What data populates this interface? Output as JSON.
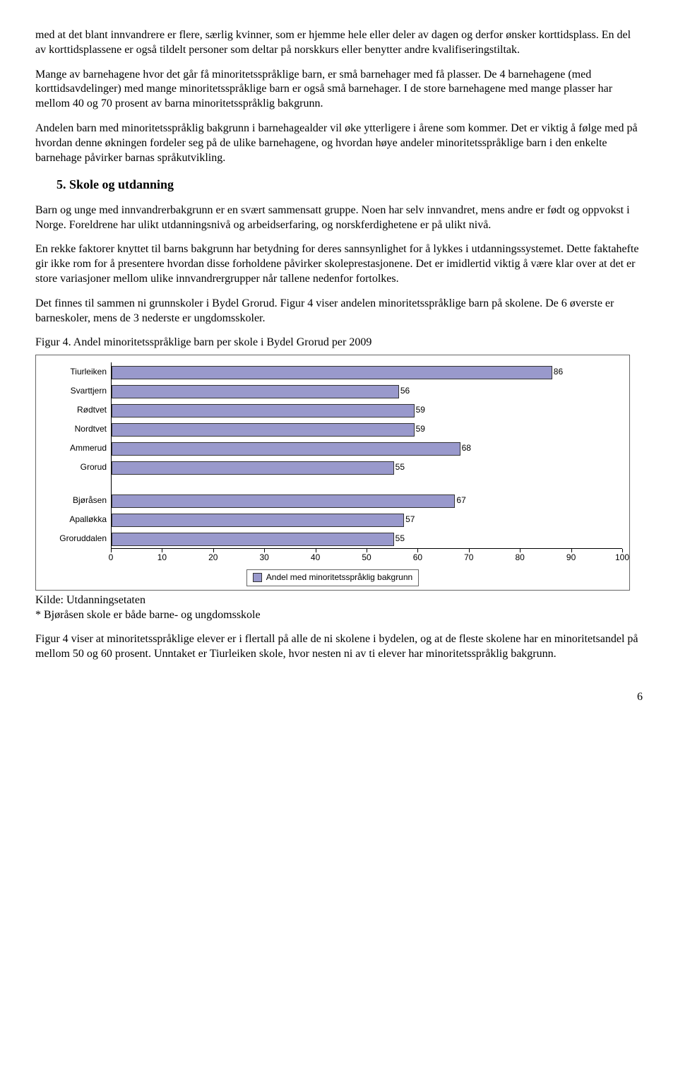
{
  "para1": "med at det blant innvandrere er flere, særlig kvinner, som er hjemme hele eller deler av dagen og derfor ønsker korttidsplass. En del av korttidsplassene er også tildelt personer som deltar på norskkurs eller benytter andre kvalifiseringstiltak.",
  "para2": "Mange av barnehagene hvor det går få minoritetsspråklige barn, er små barnehager med få plasser. De 4 barnehagene (med korttidsavdelinger) med mange minoritetsspråklige barn er også små barnehager. I de store barnehagene med mange plasser har mellom 40 og 70 prosent av barna minoritetsspråklig bakgrunn.",
  "para3": "Andelen barn med minoritetsspråklig bakgrunn i barnehagealder vil øke ytterligere i årene som kommer. Det er viktig å følge med på hvordan denne økningen fordeler seg på de ulike barnehagene, og hvordan høye andeler minoritetsspråklige barn i den enkelte barnehage påvirker barnas språkutvikling.",
  "heading": "5.  Skole og utdanning",
  "para4": "Barn og unge med innvandrerbakgrunn er en svært sammensatt gruppe. Noen har selv innvandret, mens andre er født og oppvokst i Norge. Foreldrene har ulikt utdanningsnivå og arbeidserfaring, og norskferdighetene er på ulikt nivå.",
  "para5": "En rekke faktorer knyttet til barns bakgrunn har betydning for deres sannsynlighet for å lykkes i utdanningssystemet. Dette faktahefte gir ikke rom for å presentere hvordan disse forholdene påvirker skoleprestasjonene. Det er imidlertid viktig å være klar over at det er store variasjoner mellom ulike innvandrergrupper når tallene nedenfor fortolkes.",
  "para6": "Det finnes til sammen ni grunnskoler i Bydel Grorud. Figur 4 viser andelen minoritetsspråklige barn på skolene. De 6 øverste er barneskoler, mens de 3 nederste er ungdomsskoler.",
  "figtitle": "Figur 4.  Andel minoritetsspråklige barn per skole i Bydel Grorud per 2009",
  "chart": {
    "type": "bar-horizontal",
    "xlim": [
      0,
      100
    ],
    "xtick_step": 10,
    "bar_color": "#9999cc",
    "bar_border": "#333333",
    "group1": [
      {
        "label": "Tiurleiken",
        "value": 86
      },
      {
        "label": "Svarttjern",
        "value": 56
      },
      {
        "label": "Rødtvet",
        "value": 59
      },
      {
        "label": "Nordtvet",
        "value": 59
      },
      {
        "label": "Ammerud",
        "value": 68
      },
      {
        "label": "Grorud",
        "value": 55
      }
    ],
    "group2": [
      {
        "label": "Bjøråsen",
        "value": 67
      },
      {
        "label": "Apalløkka",
        "value": 57
      },
      {
        "label": "Groruddalen",
        "value": 55
      }
    ],
    "xticks": [
      0,
      10,
      20,
      30,
      40,
      50,
      60,
      70,
      80,
      90,
      100
    ],
    "legend": "Andel med minoritetsspråklig bakgrunn"
  },
  "src1": "Kilde: Utdanningsetaten",
  "src2": "* Bjøråsen skole er både barne- og ungdomsskole",
  "para7": "Figur 4 viser at minoritetsspråklige elever er i flertall på alle de ni skolene i bydelen, og at de fleste skolene har en minoritetsandel på mellom 50 og 60 prosent. Unntaket er Tiurleiken skole, hvor nesten ni av ti elever har minoritetsspråklig bakgrunn.",
  "pagenum": "6"
}
